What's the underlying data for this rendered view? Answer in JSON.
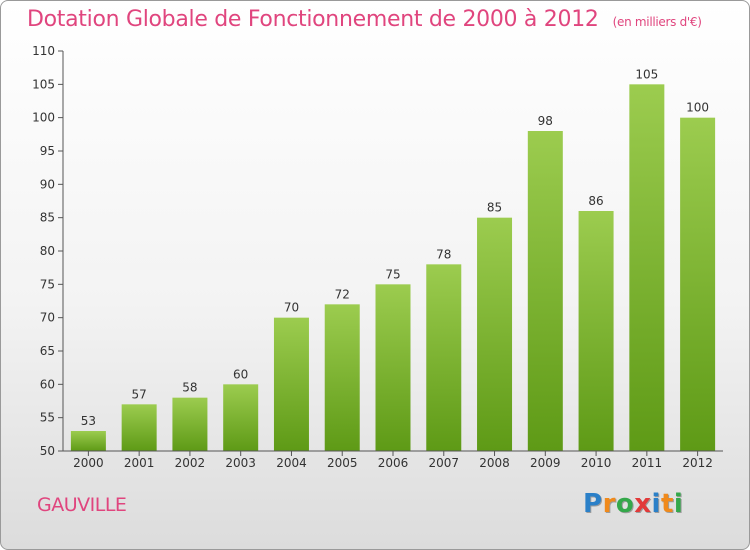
{
  "title": "Dotation Globale de Fonctionnement de 2000 à 2012",
  "unit": "(en milliers d'€)",
  "town": "GAUVILLE",
  "logo": {
    "text": "Proxiti",
    "colors": [
      "#2b80c8",
      "#f08a1c",
      "#34a84a",
      "#e23a3a",
      "#2b80c8",
      "#f08a1c",
      "#34a84a"
    ]
  },
  "colors": {
    "title": "#e0457e",
    "bar_top": "#9ccc4f",
    "bar_bottom": "#5e9a16",
    "axis": "#555555"
  },
  "chart_data": {
    "type": "bar",
    "title": "Dotation Globale de Fonctionnement de 2000 à 2012",
    "xlabel": "",
    "ylabel": "",
    "ylim": [
      50,
      110
    ],
    "yticks": [
      50,
      55,
      60,
      65,
      70,
      75,
      80,
      85,
      90,
      95,
      100,
      105,
      110
    ],
    "grid": false,
    "categories": [
      "2000",
      "2001",
      "2002",
      "2003",
      "2004",
      "2005",
      "2006",
      "2007",
      "2008",
      "2009",
      "2010",
      "2011",
      "2012"
    ],
    "values": [
      53,
      57,
      58,
      60,
      70,
      72,
      75,
      78,
      85,
      98,
      86,
      105,
      100
    ]
  }
}
